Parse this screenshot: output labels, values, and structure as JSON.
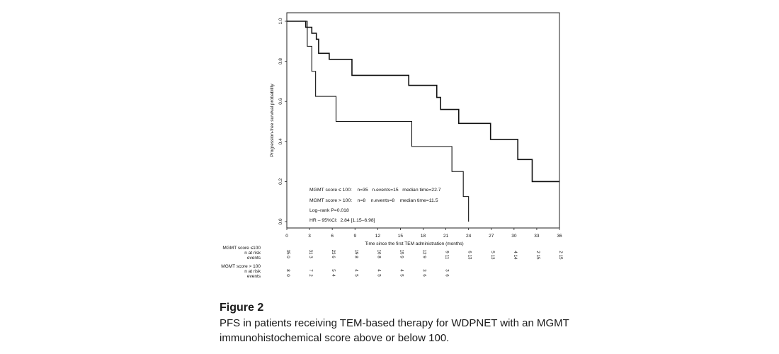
{
  "chart_data": {
    "type": "line",
    "subtype": "kaplan-meier",
    "xlabel": "Time since the first TEM administration (months)",
    "ylabel": "Progression-free survival probability",
    "xlim": [
      0,
      36
    ],
    "ylim": [
      0,
      1
    ],
    "xticks": [
      0,
      3,
      6,
      9,
      12,
      15,
      18,
      21,
      24,
      27,
      30,
      33,
      36
    ],
    "yticks": [
      0.0,
      0.2,
      0.4,
      0.6,
      0.8,
      1.0
    ],
    "ytick_labels": [
      "0.0",
      "0.2",
      "0.4",
      "0.6",
      "0.8",
      "1.0"
    ],
    "grid": false,
    "series": [
      {
        "name": "MGMT score ≤ 100",
        "stroke_width": 1.6,
        "steps": [
          [
            0,
            1.0
          ],
          [
            2.5,
            0.97
          ],
          [
            3.3,
            0.94
          ],
          [
            3.9,
            0.91
          ],
          [
            4.2,
            0.84
          ],
          [
            5.6,
            0.81
          ],
          [
            8.6,
            0.73
          ],
          [
            16.1,
            0.68
          ],
          [
            19.8,
            0.62
          ],
          [
            20.3,
            0.56
          ],
          [
            22.7,
            0.49
          ],
          [
            26.9,
            0.41
          ],
          [
            30.5,
            0.31
          ],
          [
            32.4,
            0.2
          ],
          [
            36,
            0.2
          ]
        ]
      },
      {
        "name": "MGMT score > 100",
        "stroke_width": 1.1,
        "steps": [
          [
            0,
            1.0
          ],
          [
            2.7,
            0.875
          ],
          [
            3.3,
            0.75
          ],
          [
            3.8,
            0.625
          ],
          [
            6.5,
            0.5
          ],
          [
            16.5,
            0.375
          ],
          [
            21.8,
            0.25
          ],
          [
            23.3,
            0.125
          ],
          [
            24.0,
            0.0
          ]
        ]
      }
    ],
    "annotations": [
      "MGMT score ≤ 100:    n=35   n.events=15   median time=22.7",
      "MGMT score > 100:    n=8    n.events=8    median time=11.5",
      "Log–rank P=0.018",
      "HR – 95%CI:  2.84 [1.15–6.98]"
    ]
  },
  "risk_table": {
    "groups": [
      {
        "label": "MGMT score ≤100",
        "row_labels": [
          "n at risk",
          "events"
        ],
        "at_risk": [
          "35",
          "31",
          "23",
          "19",
          "16",
          "15",
          "12",
          "9",
          "6",
          "5",
          "4",
          "2",
          "2"
        ],
        "events": [
          "0",
          "3",
          "6",
          "8",
          "8",
          "9",
          "9",
          "11",
          "13",
          "13",
          "14",
          "15",
          "15"
        ]
      },
      {
        "label": "MGMT score > 100",
        "row_labels": [
          "n at risk",
          "events"
        ],
        "at_risk": [
          "8",
          "7",
          "5",
          "4",
          "4",
          "4",
          "3",
          "3"
        ],
        "events": [
          "0",
          "2",
          "4",
          "5",
          "5",
          "5",
          "6",
          "6"
        ]
      }
    ]
  },
  "caption": {
    "title": "Figure 2",
    "text": "PFS in patients receiving TEM-based therapy for WDPNET with an MGMT immunohistochemical score above or below 100."
  }
}
